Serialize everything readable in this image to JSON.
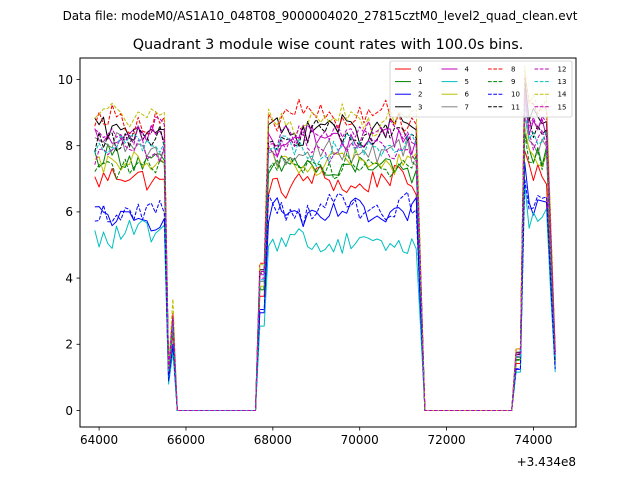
{
  "suptitle": "Data file: modeM0/AS1A10_048T08_9000004020_27815cztM0_level2_quad_clean.evt",
  "chart_data": {
    "type": "line",
    "title": "Quadrant 3 module wise count rates with 100.0s bins.",
    "xlabel": "",
    "ylabel": "",
    "x_offset_text": "+3.434e8",
    "xlim": [
      63560,
      74980
    ],
    "ylim": [
      -0.5,
      10.65
    ],
    "x_ticks": [
      64000,
      66000,
      68000,
      70000,
      72000,
      74000
    ],
    "x_tick_labels": [
      "64000",
      "66000",
      "68000",
      "70000",
      "72000",
      "74000"
    ],
    "y_ticks": [
      0,
      2,
      4,
      6,
      8,
      10
    ],
    "y_tick_labels": [
      "0",
      "2",
      "4",
      "6",
      "8",
      "10"
    ],
    "legend_position": "top-right",
    "time_segments": [
      {
        "start": 63900,
        "end": 65600,
        "ramp_end": 65800
      },
      {
        "start": 67700,
        "end": 71500,
        "ramp_start": 67700
      },
      {
        "start": 73600,
        "end": 74500,
        "ramp_start": 73600
      }
    ],
    "series": [
      {
        "name": "0",
        "color": "#ff0000",
        "dash": "solid",
        "levels": [
          7.0,
          6.9,
          7.1
        ]
      },
      {
        "name": "1",
        "color": "#008000",
        "dash": "solid",
        "levels": [
          7.6,
          7.3,
          7.7
        ]
      },
      {
        "name": "2",
        "color": "#0000ff",
        "dash": "solid",
        "levels": [
          5.8,
          5.9,
          6.2
        ]
      },
      {
        "name": "3",
        "color": "#000000",
        "dash": "solid",
        "levels": [
          8.5,
          8.5,
          8.8
        ]
      },
      {
        "name": "4",
        "color": "#bf00bf",
        "dash": "solid",
        "levels": [
          8.3,
          8.2,
          8.5
        ]
      },
      {
        "name": "5",
        "color": "#00bfbf",
        "dash": "solid",
        "levels": [
          5.3,
          5.1,
          5.8
        ]
      },
      {
        "name": "6",
        "color": "#bfbf00",
        "dash": "solid",
        "levels": [
          7.4,
          7.5,
          7.6
        ]
      },
      {
        "name": "7",
        "color": "#808080",
        "dash": "solid",
        "levels": [
          7.9,
          7.8,
          8.0
        ]
      },
      {
        "name": "8",
        "color": "#ff0000",
        "dash": "dashed",
        "levels": [
          8.8,
          8.9,
          9.3
        ]
      },
      {
        "name": "9",
        "color": "#008000",
        "dash": "dashed",
        "levels": [
          7.4,
          7.4,
          7.6
        ]
      },
      {
        "name": "10",
        "color": "#0000ff",
        "dash": "dashed",
        "levels": [
          6.0,
          6.1,
          6.3
        ]
      },
      {
        "name": "11",
        "color": "#000000",
        "dash": "dashed",
        "levels": [
          8.2,
          8.3,
          8.5
        ]
      },
      {
        "name": "12",
        "color": "#bf00bf",
        "dash": "dashed",
        "levels": [
          7.8,
          8.0,
          8.2
        ]
      },
      {
        "name": "13",
        "color": "#00bfbf",
        "dash": "dashed",
        "levels": [
          8.0,
          7.9,
          8.1
        ]
      },
      {
        "name": "14",
        "color": "#bfbf00",
        "dash": "dashed",
        "levels": [
          8.9,
          8.8,
          9.3
        ]
      },
      {
        "name": "15",
        "color": "#bf00bf",
        "dash": "dashed",
        "levels": [
          8.5,
          8.4,
          8.7
        ]
      }
    ]
  }
}
